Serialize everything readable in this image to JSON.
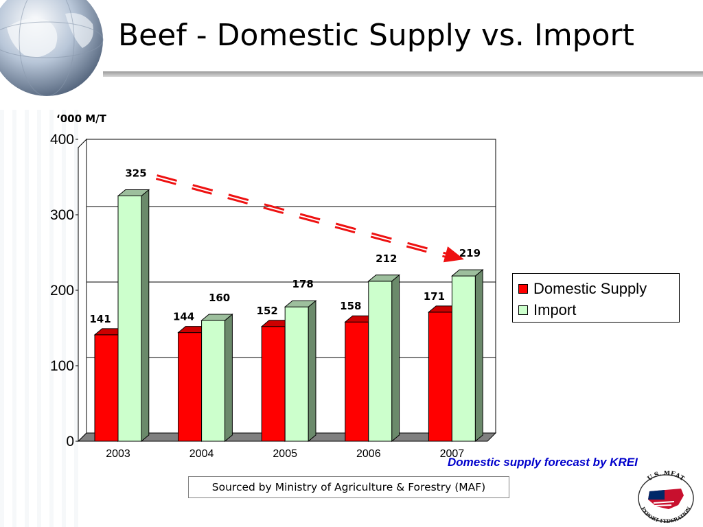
{
  "slide": {
    "title": "Beef - Domestic Supply vs. Import",
    "forecast_note": "Domestic supply forecast by KREI",
    "source": "Sourced by Ministry of Agriculture & Forestry (MAF)",
    "logo_text_top": "U.S. MEAT",
    "logo_text_bottom": "EXPORT FEDERATION"
  },
  "chart_data": {
    "type": "bar",
    "title": "",
    "xlabel": "",
    "ylabel": "‘000 M/T",
    "categories": [
      "2003",
      "2004",
      "2005",
      "2006",
      "2007"
    ],
    "series": [
      {
        "name": "Domestic Supply",
        "values": [
          141,
          144,
          152,
          158,
          171
        ],
        "color": "#ff0000"
      },
      {
        "name": "Import",
        "values": [
          325,
          160,
          178,
          212,
          219
        ],
        "color": "#ccffcc"
      }
    ],
    "ylim": [
      0,
      400
    ],
    "yticks": [
      "0",
      "100",
      "200",
      "300",
      "400"
    ],
    "grid": true,
    "legend": "right",
    "three_d": true,
    "annotation": "dashed red arrow showing declining import trend"
  },
  "colors": {
    "domestic": "#ff0000",
    "import": "#ccffcc",
    "side_shade": "#6b8a6b",
    "floor": "#808080",
    "trend_arrow": "#ee1111",
    "note_blue": "#0000cc"
  }
}
